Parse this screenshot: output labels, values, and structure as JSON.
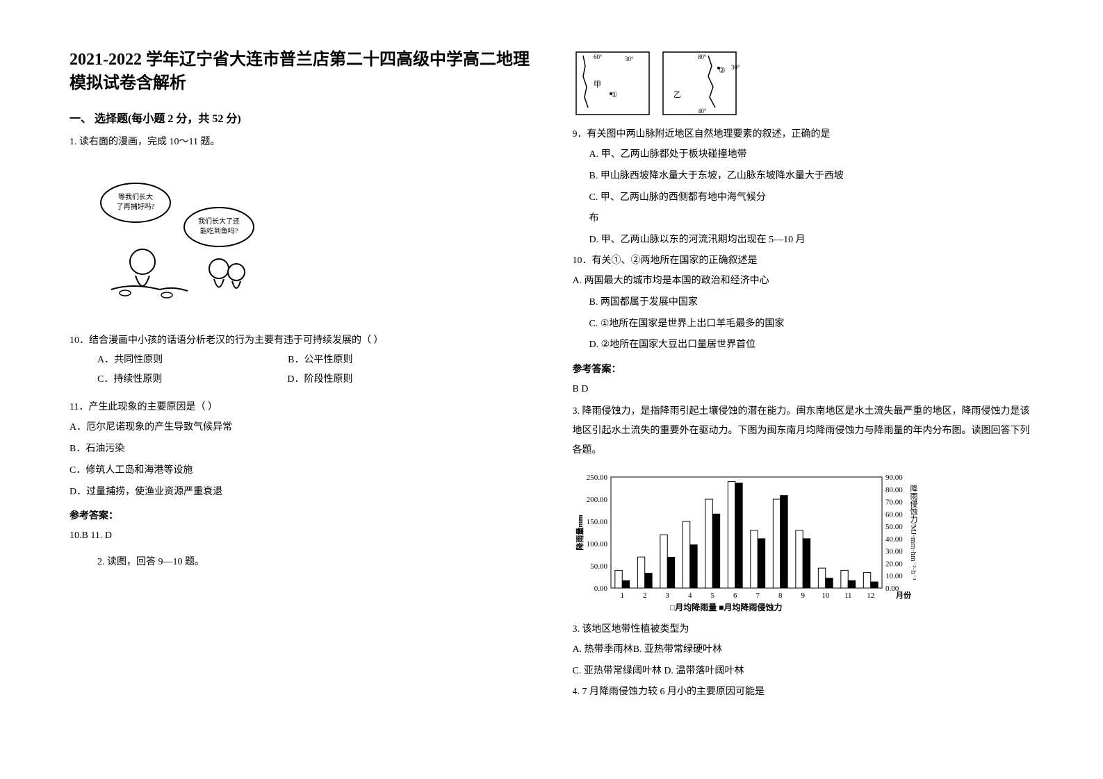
{
  "left": {
    "title": "2021-2022 学年辽宁省大连市普兰店第二十四高级中学高二地理模拟试卷含解析",
    "section1_heading": "一、 选择题(每小题 2 分，共 52 分)",
    "q1_intro": "1. 读右面的漫画，完成 10～11 题。",
    "cartoon_bubble1": "等我们长大了再捕好吗?",
    "cartoon_bubble2": "我们长大了还能吃到鱼吗?",
    "q10_stem": "10．结合漫画中小孩的话语分析老汉的行为主要有违于可持续发展的（        ）",
    "q10_opts": {
      "a": "A．共同性原则",
      "b": "B．公平性原则",
      "c": "C．持续性原则",
      "d": "D．阶段性原则"
    },
    "q11_stem": "11．产生此现象的主要原因是（       ）",
    "q11_opts": {
      "a": "A．厄尔尼诺现象的产生导致气候异常",
      "b": "B．石油污染",
      "c": "C．修筑人工岛和海港等设施",
      "d": "D．过量捕捞，使渔业资源严重衰退"
    },
    "answer_heading": "参考答案：",
    "answer_text": "10.B          11. D",
    "q2_intro": "2. 读图，回答 9—10 题。"
  },
  "right": {
    "map_coords": [
      "60°",
      "80°",
      "30°",
      "40°",
      "30°"
    ],
    "map_labels": [
      "甲",
      "乙",
      "①",
      "②"
    ],
    "q9_stem": "9．有关图中两山脉附近地区自然地理要素的叙述，正确的是",
    "q9_opts": {
      "a": "A. 甲、乙两山脉都处于板块碰撞地带",
      "b": "B. 甲山脉西坡降水量大于东坡，乙山脉东坡降水量大于西坡",
      "c": "C. 甲、乙两山脉的西侧都有地中海气候分",
      "c2": "布",
      "d": "D. 甲、乙两山脉以东的河流汛期均出现在 5—10 月"
    },
    "q10b_stem": "10．有关①、②两地所在国家的正确叙述是",
    "q10b_opts": {
      "a": "A. 两国最大的城市均是本国的政治和经济中心",
      "b": "B. 两国都属于发展中国家",
      "c": "C. ①地所在国家是世界上出口羊毛最多的国家",
      "d": "D. ②地所在国家大豆出口量居世界首位"
    },
    "answer_heading": "参考答案：",
    "answer_text": "B  D",
    "q3_intro": "3. 降雨侵蚀力，是指降雨引起土壤侵蚀的潜在能力。闽东南地区是水土流失最严重的地区，降雨侵蚀力是该地区引起水土流失的重要外在驱动力。下图为闽东南月均降雨侵蚀力与降雨量的年内分布图。读图回答下列各题。",
    "chart": {
      "type": "bar",
      "y1_label": "降雨量mm",
      "y2_label": "降雨侵蚀力/MJ·mm·hm⁻²·h⁻¹",
      "x_label": "月份",
      "y1_max": 250,
      "y1_ticks": [
        0,
        50,
        100,
        150,
        200,
        250
      ],
      "y1_tick_labels": [
        "0.00",
        "50.00",
        "100.00",
        "150.00",
        "200.00",
        "250.00"
      ],
      "y2_max": 90,
      "y2_ticks": [
        0,
        10,
        20,
        30,
        40,
        50,
        60,
        70,
        80,
        90
      ],
      "y2_tick_labels": [
        "0.00",
        "10.00",
        "20.00",
        "30.00",
        "40.00",
        "50.00",
        "60.00",
        "70.00",
        "80.00",
        "90.00"
      ],
      "months": [
        1,
        2,
        3,
        4,
        5,
        6,
        7,
        8,
        9,
        10,
        11,
        12
      ],
      "rainfall": [
        40,
        70,
        120,
        150,
        200,
        240,
        130,
        200,
        130,
        45,
        40,
        35
      ],
      "erosion": [
        6,
        12,
        25,
        35,
        60,
        85,
        40,
        75,
        40,
        8,
        6,
        5
      ],
      "legend_rainfall": "□月均降雨量",
      "legend_erosion": "■月均降雨侵蚀力",
      "bar_color_rainfall": "#ffffff",
      "bar_color_erosion": "#000000",
      "bar_border": "#000000",
      "grid_color": "#999999",
      "background": "#ffffff",
      "label_fontsize": 11
    },
    "q3_stem": "3.  该地区地带性植被类型为",
    "q3_opts": {
      "a": "A.  热带季雨林",
      "b": "B.  亚热带常绿硬叶林",
      "c": "C.  亚热带常绿阔叶林",
      "d": "D.  温带落叶阔叶林"
    },
    "q4_stem": "4.  7 月降雨侵蚀力较 6 月小的主要原因可能是"
  }
}
